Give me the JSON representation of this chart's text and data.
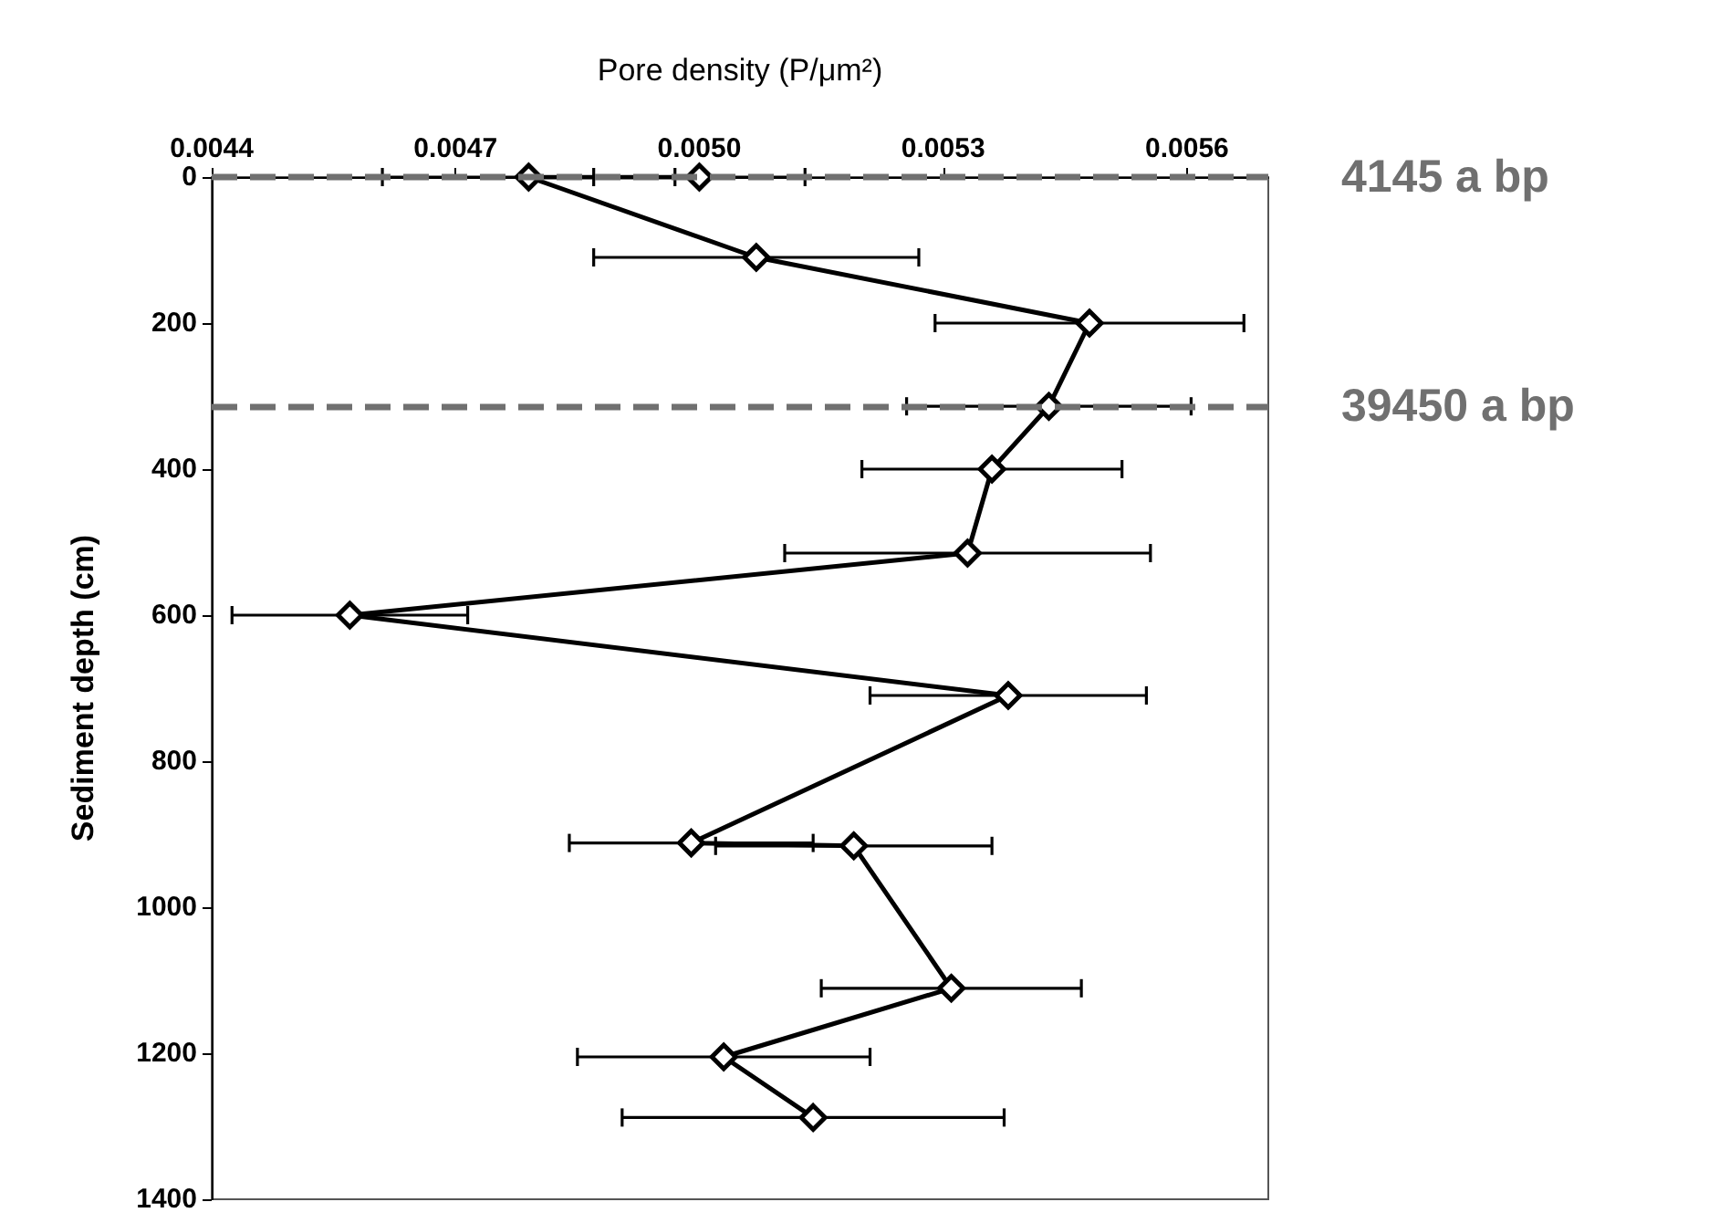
{
  "chart_data": {
    "type": "line",
    "xlabel": "Pore density (P/μm²)",
    "ylabel": "Sediment depth (cm)",
    "series": [
      {
        "color": "#000000",
        "x": [
          0.005,
          0.00479,
          0.00507,
          0.00548,
          0.00543,
          0.00536,
          0.00533,
          0.00457,
          0.00538,
          0.00499,
          0.00519,
          0.00531,
          0.00503,
          0.00514
        ],
        "values": [
          0,
          0,
          110,
          200,
          314,
          400,
          515,
          600,
          710,
          912,
          916,
          1111,
          1205,
          1288
        ],
        "xerrors": [
          0.00013,
          0.00018,
          0.0002,
          0.00019,
          0.000175,
          0.00016,
          0.000225,
          0.000145,
          0.00017,
          0.00015,
          0.00017,
          0.00016,
          0.00018,
          0.000235
        ]
      }
    ],
    "xlim": [
      0.0044,
      0.0057
    ],
    "xticks": [
      {
        "value": 0.0044,
        "label": "0.0044"
      },
      {
        "value": 0.0047,
        "label": "0.0047"
      },
      {
        "value": 0.005,
        "label": "0.0050"
      },
      {
        "value": 0.0053,
        "label": "0.0053"
      },
      {
        "value": 0.0056,
        "label": "0.0056"
      }
    ],
    "ylim": [
      1400,
      0
    ],
    "yticks": [
      0,
      200,
      400,
      600,
      800,
      1000,
      1200,
      1400
    ],
    "marker": "diamond",
    "line_style": "solid",
    "grid": false,
    "ref_lines": [
      {
        "axis": "y",
        "value": 0,
        "label": "4145 a bp",
        "color": "#707070",
        "line_style": "dashed"
      },
      {
        "axis": "y",
        "value": 314,
        "label": "39450 a bp",
        "color": "#707070",
        "line_style": "dashed"
      }
    ]
  }
}
